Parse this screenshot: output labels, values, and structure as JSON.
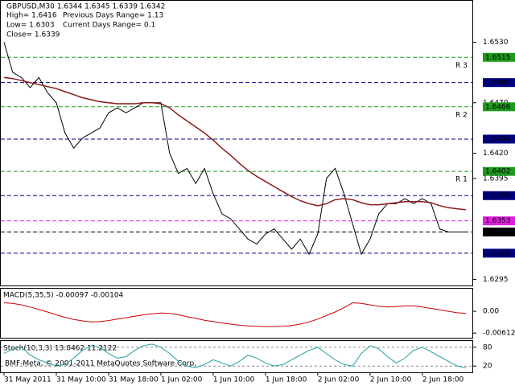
{
  "chart_data": [
    {
      "type": "line",
      "title": "GBPUSD,M30  1.6344 1.6345 1.6339 1.6342",
      "annotations": [
        "High= 1.6416",
        "Previous Days Range= 1.13",
        "Low= 1.6303",
        "Current Days Range= 0.1",
        "Close= 1.6339"
      ],
      "categories": [
        "31 May 2011",
        null,
        null,
        null,
        null,
        null,
        "31 May 10:00",
        null,
        null,
        null,
        null,
        null,
        "31 May 18:00",
        null,
        null,
        null,
        null,
        null,
        "1 Jun 02:00",
        null,
        null,
        null,
        null,
        null,
        "1 Jun 10:00",
        null,
        null,
        null,
        null,
        null,
        "1 Jun 18:00",
        null,
        null,
        null,
        null,
        null,
        "2 Jun 02:00",
        null,
        null,
        null,
        null,
        null,
        "2 Jun 10:00",
        null,
        null,
        null,
        null,
        null,
        "2 Jun 18:00",
        null,
        null,
        null,
        null,
        null
      ],
      "series": [
        {
          "color": "#000000",
          "values": [
            1.653,
            1.65,
            1.6495,
            1.6485,
            1.6495,
            1.648,
            1.647,
            1.644,
            1.6425,
            1.6435,
            1.644,
            1.6445,
            1.646,
            1.6465,
            1.646,
            1.6465,
            1.647,
            1.647,
            1.647,
            1.642,
            1.64,
            1.6405,
            1.639,
            1.6405,
            1.638,
            1.636,
            1.6355,
            1.6345,
            1.6335,
            1.633,
            1.634,
            1.6345,
            1.6335,
            1.6325,
            1.6335,
            1.632,
            1.634,
            1.6395,
            1.6405,
            1.638,
            1.635,
            1.632,
            1.6335,
            1.636,
            1.637,
            1.637,
            1.6375,
            1.637,
            1.6375,
            1.637,
            1.6345,
            1.6342,
            1.6342,
            1.6342
          ]
        },
        {
          "color": "#8b1a1a",
          "values": [
            1.6495,
            1.6494,
            1.6492,
            1.649,
            1.6488,
            1.6486,
            1.6484,
            1.6481,
            1.6478,
            1.6475,
            1.6473,
            1.6471,
            1.647,
            1.6469,
            1.6469,
            1.6469,
            1.647,
            1.647,
            1.6469,
            1.6465,
            1.6458,
            1.6452,
            1.6446,
            1.644,
            1.6433,
            1.6425,
            1.6418,
            1.641,
            1.6403,
            1.6397,
            1.6392,
            1.6387,
            1.6382,
            1.6377,
            1.6373,
            1.637,
            1.6368,
            1.637,
            1.6374,
            1.6375,
            1.6374,
            1.6371,
            1.6369,
            1.6369,
            1.637,
            1.6371,
            1.6372,
            1.6372,
            1.6372,
            1.6371,
            1.6368,
            1.6366,
            1.6365,
            1.6364
          ]
        }
      ],
      "ylim": [
        1.6289,
        1.6571
      ],
      "yticks": [
        {
          "value": 1.653,
          "label": "1.6530"
        },
        {
          "value": 1.647,
          "label": "1.6470"
        },
        {
          "value": 1.642,
          "label": "1.6420"
        },
        1.6395,
        1.6295
      ],
      "levels": [
        {
          "value": 1.6515,
          "label": "1.6515",
          "color": "#1e9b1e",
          "tag": "R 3"
        },
        {
          "value": 1.649,
          "label": "1.6490",
          "color": "#000080"
        },
        {
          "value": 1.6466,
          "label": "1.6466",
          "color": "#1e9b1e",
          "tag": "R 2"
        },
        {
          "value": 1.6434,
          "label": "1.6434",
          "color": "#000080"
        },
        {
          "value": 1.6402,
          "label": "1.6402",
          "color": "#1e9b1e",
          "tag": "R 1"
        },
        {
          "value": 1.6378,
          "label": "1.6378",
          "color": "#000080"
        },
        {
          "value": 1.6353,
          "label": "1.6353",
          "color": "#e020e0"
        },
        {
          "value": 1.6342,
          "label": "1.6342",
          "color": "#000000"
        },
        {
          "value": 1.6321,
          "label": "1.6321",
          "color": "#000080"
        }
      ]
    },
    {
      "type": "line",
      "title": "MACD(5,35,5) -0.00097 -0.00104",
      "series": [
        {
          "color": "#cc0000",
          "values": [
            0.0024,
            0.0022,
            0.0018,
            0.0012,
            0.0005,
            -0.0002,
            -0.001,
            -0.0017,
            -0.0023,
            -0.0027,
            -0.003,
            -0.0029,
            -0.0026,
            -0.0022,
            -0.0018,
            -0.0014,
            -0.001,
            -0.0007,
            -0.0005,
            -0.0006,
            -0.001,
            -0.0015,
            -0.002,
            -0.0025,
            -0.0029,
            -0.0033,
            -0.0036,
            -0.0039,
            -0.0041,
            -0.0042,
            -0.0043,
            -0.0043,
            -0.0042,
            -0.004,
            -0.0036,
            -0.003,
            -0.0022,
            -0.0012,
            -0.0002,
            0.001,
            0.0024,
            0.0022,
            0.0018,
            0.0014,
            0.0012,
            0.0013,
            0.0015,
            0.0015,
            0.0012,
            0.0008,
            0.0004,
            0.0,
            -0.0004,
            -0.0006
          ]
        }
      ],
      "ylim": [
        -0.00743,
        0.00634
      ],
      "yticks": [
        {
          "value": 0,
          "label": "0.00"
        },
        -0.00612
      ]
    },
    {
      "type": "line",
      "title": "Stoch(10,3,3) 13.8462 11.2122",
      "annotations": [
        "BMF-Meta, © 2001-2011 MetaQuotes Software Corp."
      ],
      "series": [
        {
          "color": "#20a0a0",
          "values": [
            60,
            75,
            80,
            55,
            40,
            30,
            20,
            25,
            45,
            70,
            85,
            80,
            60,
            45,
            50,
            70,
            85,
            90,
            80,
            60,
            35,
            20,
            15,
            25,
            40,
            30,
            20,
            35,
            55,
            45,
            30,
            20,
            25,
            40,
            55,
            70,
            80,
            60,
            40,
            25,
            20,
            60,
            85,
            75,
            50,
            30,
            45,
            70,
            80,
            65,
            50,
            35,
            20,
            14
          ]
        }
      ],
      "ylim": [
        0,
        100
      ],
      "yticks": [
        80,
        20
      ]
    }
  ]
}
